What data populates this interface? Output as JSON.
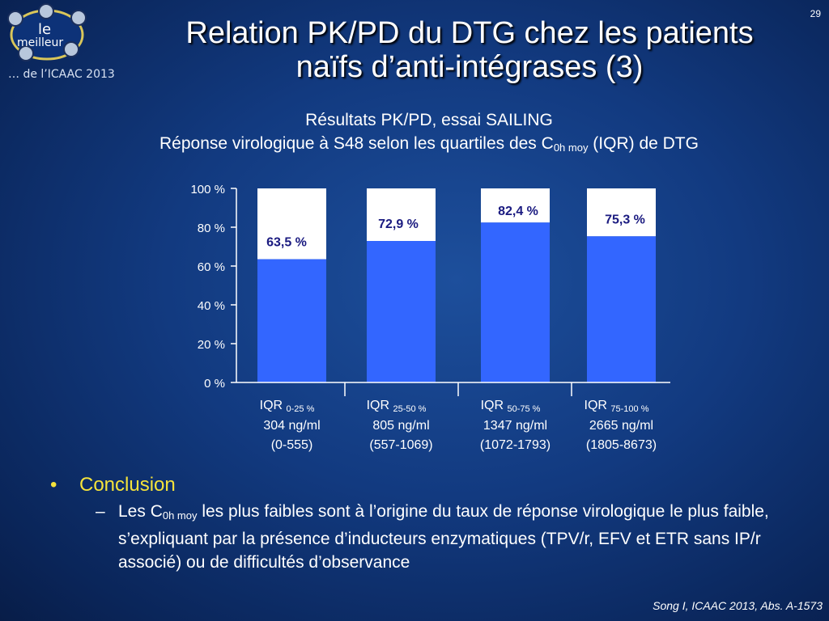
{
  "page_number": "29",
  "logo": {
    "word1": "le",
    "word2": "meilleur",
    "tagline": "… de l’ICAAC 2013"
  },
  "title": {
    "line1": "Relation PK/PD du DTG chez les patients",
    "line2": "naïfs d’anti-intégrases (3)"
  },
  "subtitle": {
    "line1": "Résultats PK/PD, essai SAILING",
    "line2_pre": "Réponse virologique à S48 selon les quartiles des C",
    "line2_sub": "0h moy",
    "line2_post": " (IQR) de DTG"
  },
  "chart_data": {
    "type": "bar",
    "stacked_on_100": true,
    "ylim": [
      0,
      100
    ],
    "yticks": [
      "0 %",
      "20 %",
      "40 %",
      "60 %",
      "80 %",
      "100 %"
    ],
    "categories": [
      {
        "iqr": "IQR",
        "range": "0-25 %",
        "conc": "304 ng/ml",
        "interval": "(0-555)"
      },
      {
        "iqr": "IQR",
        "range": "25-50 %",
        "conc": "805 ng/ml",
        "interval": "(557-1069)"
      },
      {
        "iqr": "IQR",
        "range": "50-75 %",
        "conc": "1347 ng/ml",
        "interval": "(1072-1793)"
      },
      {
        "iqr": "IQR",
        "range": "75-100 %",
        "conc": "2665 ng/ml",
        "interval": "(1805-8673)"
      }
    ],
    "values": [
      63.5,
      72.9,
      82.4,
      75.3
    ],
    "labels": [
      "63,5 %",
      "72,9 %",
      "82,4 %",
      "75,3 %"
    ],
    "colors": {
      "bar": "#3366ff",
      "remainder": "#ffffff",
      "label": "#1a1a80",
      "axis": "#ffffff"
    }
  },
  "conclusion": {
    "bullet_marker": "•",
    "heading": "Conclusion",
    "dash": "–",
    "text_pre": "Les C",
    "text_sub": "0h moy",
    "text_post": " les plus faibles sont à l’origine du taux de réponse virologique le plus faible, s’expliquant par la présence d’inducteurs enzymatiques (TPV/r, EFV et ETR sans IP/r associé) ou de difficultés d’observance"
  },
  "citation": "Song I, ICAAC 2013, Abs. A-1573"
}
